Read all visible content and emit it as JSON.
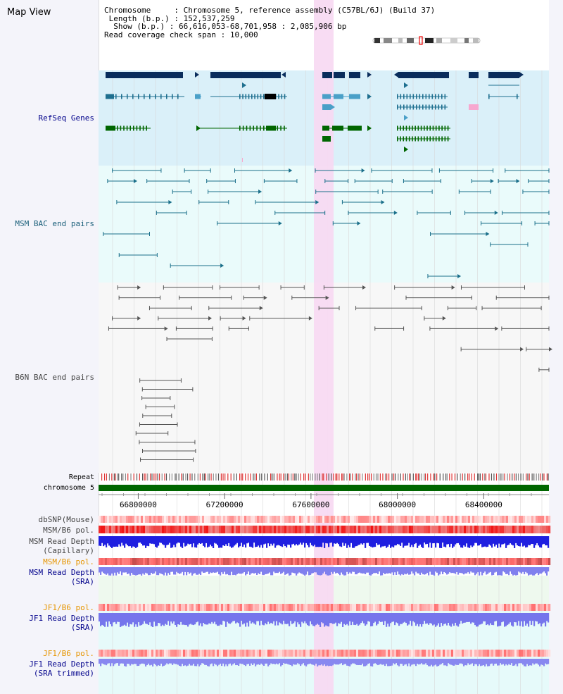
{
  "app_title": "Map View",
  "info": {
    "chromosome_key": "Chromosome",
    "chromosome_val": "Chromosome 5, reference assembly (C57BL/6J) (Build 37)",
    "length_key": "Length (b.p.)",
    "length_val": "152,537,259",
    "show_key": "Show (b.p.)",
    "show_val": "66,616,053-68,701,958 : 2,085,906 bp",
    "span_key": "Read coverage check span",
    "span_val": "10,000"
  },
  "tracks": {
    "refseq": "RefSeq Genes",
    "msm_bac": "MSM BAC end pairs",
    "b6n_bac": "B6N BAC end pairs",
    "repeat": "Repeat",
    "chromosome": "chromosome 5",
    "dbsnp": "dbSNP(Mouse)",
    "msm_pol1": "MSM/B6 pol.",
    "msm_depth_cap_1": "MSM Read Depth",
    "msm_depth_cap_2": "(Capillary)",
    "msm_pol2": "MSM/B6 pol.",
    "msm_depth_sra_1": "MSM Read Depth",
    "msm_depth_sra_2": "(SRA)",
    "jf1_pol1": "JF1/B6 pol.",
    "jf1_depth_1": "JF1 Read Depth",
    "jf1_depth_2": "(SRA)",
    "jf1_pol2": "JF1/B6 pol.",
    "jf1_trim_1": "JF1 Read Depth",
    "jf1_trim_2": "(SRA trimmed)"
  },
  "axis": {
    "ticks": [
      "66800000",
      "67200000",
      "67600000",
      "68000000",
      "68400000"
    ],
    "tick_positions_bp": [
      66800000,
      67200000,
      67600000,
      68000000,
      68400000
    ],
    "start_bp": 66616053,
    "end_bp": 68701958
  },
  "colors": {
    "refseq_dark": "#0a2d5c",
    "refseq_teal": "#1e6f8f",
    "refseq_green": "#006600",
    "msm_bac": "#1a6f8a",
    "b6n_bac": "#555555",
    "chromosome_bar": "#006600",
    "highlight": "#f7d8f2",
    "label_blue": "#00008b",
    "label_orange": "#e69500",
    "label_teal": "#1a5f7a"
  }
}
